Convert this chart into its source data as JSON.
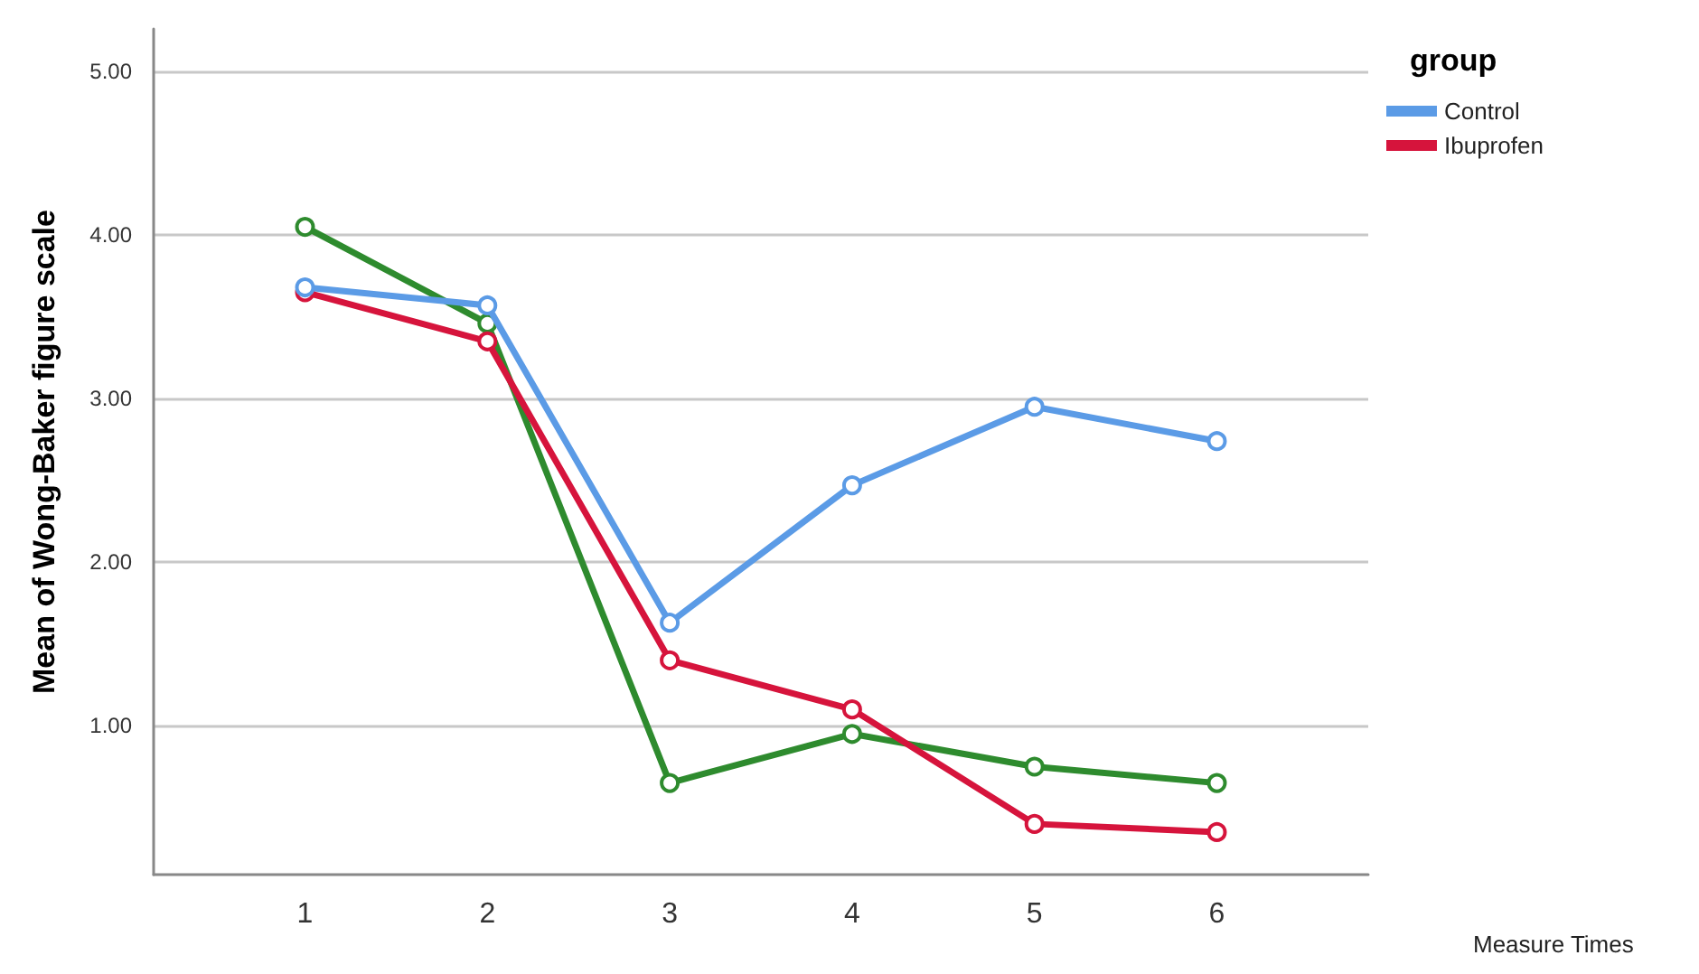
{
  "chart_data": {
    "type": "line",
    "xlabel": "Measure Times",
    "ylabel": "Mean of Wong-Baker figure scale",
    "legend_title": "group",
    "x": [
      1,
      2,
      3,
      4,
      5,
      6
    ],
    "xlim": [
      0.17,
      6.83
    ],
    "xticks": [
      1,
      2,
      3,
      4,
      5,
      6
    ],
    "ylim": [
      0.09,
      5.26
    ],
    "yticks": [
      {
        "value": 1,
        "label": "1.00"
      },
      {
        "value": 2,
        "label": "2.00"
      },
      {
        "value": 3,
        "label": "3.00"
      },
      {
        "value": 4,
        "label": "4.00"
      },
      {
        "value": 5,
        "label": "5.00"
      }
    ],
    "series": [
      {
        "name": "Control",
        "color": "#5b9be6",
        "values": [
          3.68,
          3.57,
          1.63,
          2.47,
          2.95,
          2.74
        ]
      },
      {
        "name": "Ibuprofen",
        "color": "#d6143c",
        "values": [
          3.65,
          3.35,
          1.4,
          1.1,
          0.4,
          0.35
        ]
      },
      {
        "color": "#2e8b2e",
        "values": [
          4.05,
          3.46,
          0.65,
          0.95,
          0.75,
          0.65
        ]
      }
    ],
    "grid": "y",
    "legend": "top right",
    "marker": "circle",
    "line_style": "solid"
  }
}
